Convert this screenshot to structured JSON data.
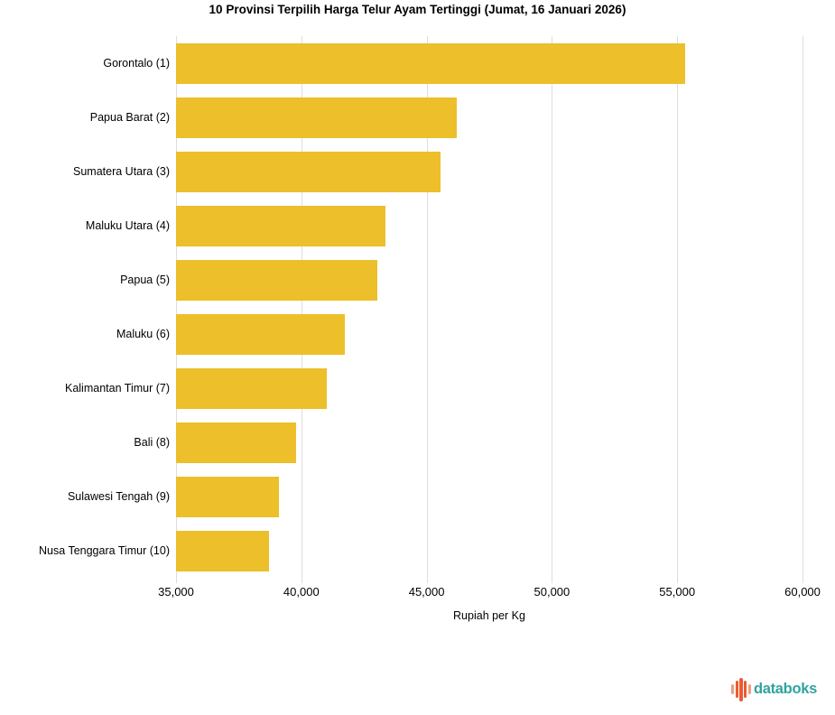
{
  "chart_data": {
    "type": "bar",
    "orientation": "horizontal",
    "title": "10 Provinsi Terpilih Harga Telur Ayam Tertinggi (Jumat, 16 Januari 2026)",
    "xlabel": "Rupiah per Kg",
    "ylabel": "",
    "categories": [
      "Gorontalo (1)",
      "Papua Barat (2)",
      "Sumatera Utara (3)",
      "Maluku Utara (4)",
      "Papua (5)",
      "Maluku (6)",
      "Kalimantan Timur (7)",
      "Bali (8)",
      "Sulawesi Tengah (9)",
      "Nusa Tenggara Timur (10)"
    ],
    "values": [
      55300,
      46200,
      45550,
      43350,
      43050,
      41750,
      41000,
      39800,
      39100,
      38700
    ],
    "xlim": [
      35000,
      60000
    ],
    "xticks": [
      35000,
      40000,
      45000,
      50000,
      55000,
      60000
    ],
    "xtick_labels": [
      "35,000",
      "40,000",
      "45,000",
      "50,000",
      "55,000",
      "60,000"
    ],
    "grid": "vertical",
    "legend_position": "none",
    "bar_color": "#ECBF2B"
  },
  "colors": {
    "bar": "#ECBF2B",
    "grid": "#DDDDDD",
    "text": "#000000",
    "brand_teal": "#2FA3A0",
    "brand_orange": "#EC5B33",
    "brand_salmon": "#F29B7D"
  },
  "branding": {
    "name": "databoks"
  }
}
